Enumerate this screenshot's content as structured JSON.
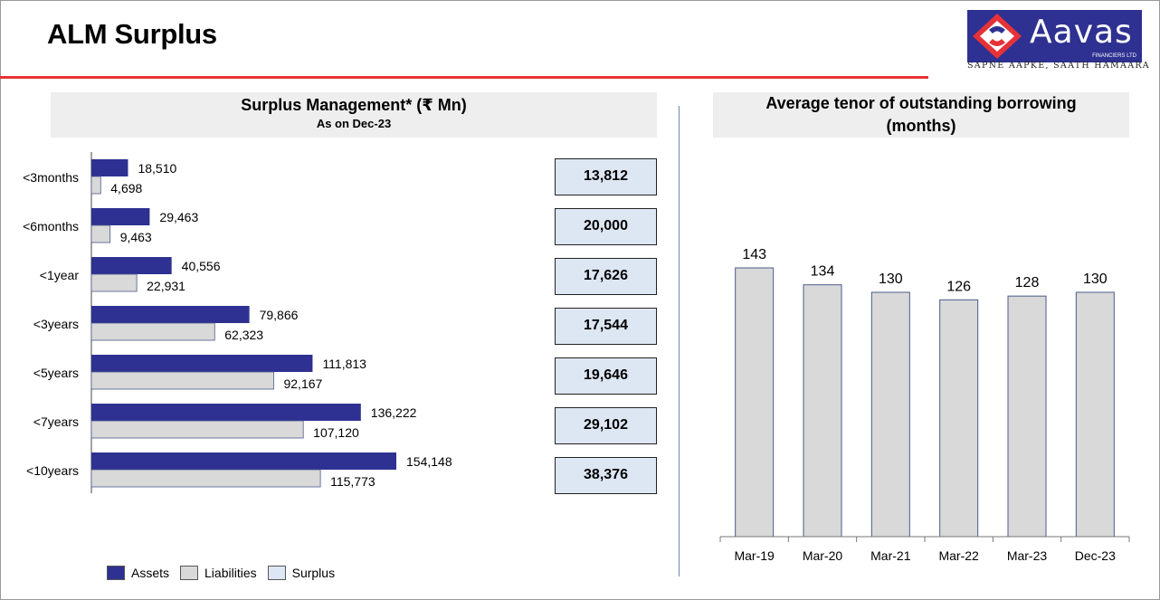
{
  "page": {
    "title": "ALM Surplus"
  },
  "logo": {
    "name": "Aavas",
    "subtitle": "FINANCIERS LTD",
    "tagline": "SAPNE AAPKE, SAATH HAMAARA"
  },
  "colors": {
    "assets": "#2e3191",
    "liabilities": "#d9d9d9",
    "surplus": "#dde6f3",
    "accent": "#e53238",
    "tenor_bar": "#d9d9d9"
  },
  "left_panel": {
    "title": "Surplus Management* (₹ Mn)",
    "subtitle": "As on Dec-23",
    "legend": {
      "assets": "Assets",
      "liabilities": "Liabilities",
      "surplus": "Surplus"
    }
  },
  "right_panel": {
    "title_line1": "Average tenor of outstanding borrowing",
    "title_line2": "(months)"
  },
  "chart_data": [
    {
      "type": "bar",
      "orientation": "horizontal",
      "title": "Surplus Management* (₹ Mn)",
      "subtitle": "As on Dec-23",
      "categories": [
        "<3months",
        "<6months",
        "<1year",
        "<3years",
        "<5years",
        "<7years",
        "<10years"
      ],
      "series": [
        {
          "name": "Assets",
          "values": [
            18510,
            29463,
            40556,
            79866,
            111813,
            136222,
            154148
          ]
        },
        {
          "name": "Liabilities",
          "values": [
            4698,
            9463,
            22931,
            62323,
            92167,
            107120,
            115773
          ]
        },
        {
          "name": "Surplus",
          "values": [
            13812,
            20000,
            17626,
            17544,
            19646,
            29102,
            38376
          ]
        }
      ],
      "value_labels": {
        "assets": [
          "18,510",
          "29,463",
          "40,556",
          "79,866",
          "111,813",
          "136,222",
          "154,148"
        ],
        "liabilities": [
          "4,698",
          "9,463",
          "22,931",
          "62,323",
          "92,167",
          "107,120",
          "115,773"
        ],
        "surplus": [
          "13,812",
          "20,000",
          "17,626",
          "17,544",
          "19,646",
          "29,102",
          "38,376"
        ]
      },
      "xlim": [
        0,
        160000
      ],
      "legend": "bottom-left",
      "grid": false
    },
    {
      "type": "bar",
      "title": "Average tenor of outstanding borrowing (months)",
      "categories": [
        "Mar-19",
        "Mar-20",
        "Mar-21",
        "Mar-22",
        "Mar-23",
        "Dec-23"
      ],
      "values": [
        143,
        134,
        130,
        126,
        128,
        130
      ],
      "ylim": [
        0,
        200
      ],
      "grid": false
    }
  ]
}
